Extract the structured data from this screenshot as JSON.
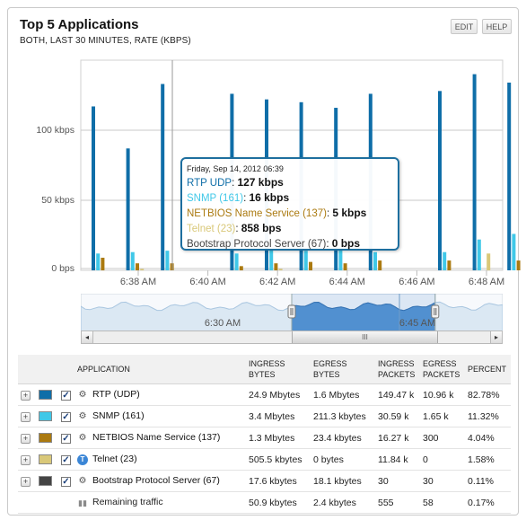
{
  "header": {
    "title": "Top 5 Applications",
    "subtitle": "BOTH, LAST 30 MINUTES, RATE (KBPS)",
    "edit_label": "EDIT",
    "help_label": "HELP"
  },
  "chart_data": {
    "type": "bar",
    "ylabel_ticks": [
      "100 kbps",
      "50 kbps",
      "0 bps"
    ],
    "y_tick_values": [
      100,
      50,
      0
    ],
    "ylim": [
      0,
      150
    ],
    "x_tick_labels": [
      "6:38 AM",
      "6:40 AM",
      "6:42 AM",
      "6:44 AM",
      "6:46 AM",
      "6:48 AM"
    ],
    "grid": true,
    "series": [
      {
        "name": "RTP (UDP)",
        "color": "#0f6ea8",
        "values": [
          117,
          87,
          133,
          0,
          126,
          122,
          120,
          116,
          126,
          0,
          128,
          140,
          134,
          124
        ]
      },
      {
        "name": "SNMP (161)",
        "color": "#40c8e8",
        "values": [
          12,
          13,
          14,
          0,
          12,
          15,
          14,
          16,
          13,
          0,
          13,
          22,
          26,
          17
        ]
      },
      {
        "name": "NETBIOS Name Service (137)",
        "color": "#ab7a10",
        "values": [
          9,
          5,
          5,
          0,
          3,
          5,
          6,
          5,
          7,
          0,
          7,
          0,
          7,
          4
        ]
      },
      {
        "name": "Telnet (23)",
        "color": "#d9c879",
        "values": [
          0,
          1,
          0,
          0,
          0,
          1,
          0,
          0,
          0,
          0,
          0,
          12,
          0,
          12
        ]
      },
      {
        "name": "Bootstrap Protocol Server (67)",
        "color": "#444444",
        "values": [
          0,
          0,
          0,
          0,
          0,
          0,
          0,
          0,
          0,
          0,
          0,
          0,
          0,
          0
        ]
      }
    ]
  },
  "tooltip": {
    "date": "Friday, Sep 14, 2012 06:39",
    "rows": [
      {
        "label": "RTP UDP",
        "value": "127 kbps",
        "color": "#0f6ea8"
      },
      {
        "label": "SNMP (161)",
        "value": "16 kbps",
        "color": "#40c8e8"
      },
      {
        "label": "NETBIOS Name Service (137)",
        "value": "5 kbps",
        "color": "#ab7a10"
      },
      {
        "label": "Telnet (23)",
        "value": "858 bps",
        "color": "#d9c879"
      },
      {
        "label": "Bootstrap Protocol Server (67)",
        "value": "0 bps",
        "color": "#444444"
      }
    ]
  },
  "navigator": {
    "labels": [
      "6:30 AM",
      "6:45 AM"
    ],
    "selected_range": [
      0.5,
      0.84
    ]
  },
  "scrollbar": {
    "left_arrow": "◂",
    "right_arrow": "▸",
    "grip": "III"
  },
  "table": {
    "headers": {
      "application": "APPLICATION",
      "ingress_bytes": "INGRESS BYTES",
      "egress_bytes": "EGRESS BYTES",
      "ingress_packets": "INGRESS PACKETS",
      "egress_packets": "EGRESS PACKETS",
      "percent": "PERCENT"
    },
    "rows": [
      {
        "name": "RTP (UDP)",
        "color": "#0f6ea8",
        "icon": "gear-icon",
        "ingress_bytes": "24.9 Mbytes",
        "egress_bytes": "1.6 Mbytes",
        "ingress_packets": "149.47 k",
        "egress_packets": "10.96 k",
        "percent": "82.78%"
      },
      {
        "name": "SNMP (161)",
        "color": "#40c8e8",
        "icon": "gear-icon",
        "ingress_bytes": "3.4 Mbytes",
        "egress_bytes": "211.3 kbytes",
        "ingress_packets": "30.59 k",
        "egress_packets": "1.65 k",
        "percent": "11.32%"
      },
      {
        "name": "NETBIOS Name Service (137)",
        "color": "#ab7a10",
        "icon": "gear-icon",
        "ingress_bytes": "1.3 Mbytes",
        "egress_bytes": "23.4 kbytes",
        "ingress_packets": "16.27 k",
        "egress_packets": "300",
        "percent": "4.04%"
      },
      {
        "name": "Telnet (23)",
        "color": "#d9c879",
        "icon": "telnet-icon",
        "ingress_bytes": "505.5 kbytes",
        "egress_bytes": "0 bytes",
        "ingress_packets": "11.84 k",
        "egress_packets": "0",
        "percent": "1.58%"
      },
      {
        "name": "Bootstrap Protocol Server (67)",
        "color": "#444444",
        "icon": "gear-icon",
        "ingress_bytes": "17.6 kbytes",
        "egress_bytes": "18.1 kbytes",
        "ingress_packets": "30",
        "egress_packets": "30",
        "percent": "0.11%"
      }
    ],
    "remaining": {
      "name": "Remaining traffic",
      "icon": "bar-chart-icon",
      "ingress_bytes": "50.9 kbytes",
      "egress_bytes": "2.4 kbytes",
      "ingress_packets": "555",
      "egress_packets": "58",
      "percent": "0.17%"
    },
    "expand_glyph": "+",
    "check_glyph": "✓"
  }
}
